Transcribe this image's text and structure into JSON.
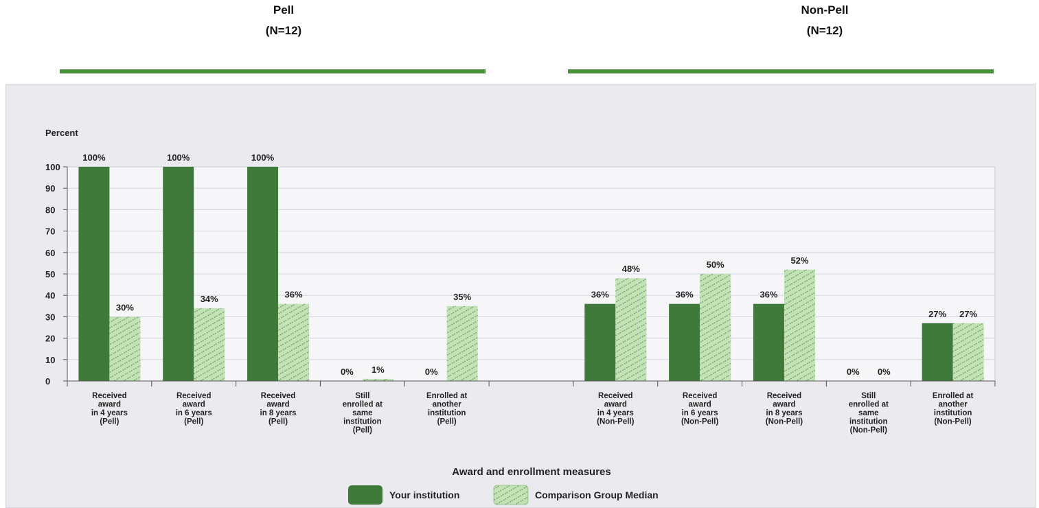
{
  "groups": [
    {
      "title": "Pell",
      "n": "(N=12)"
    },
    {
      "title": "Non-Pell",
      "n": "(N=12)"
    }
  ],
  "colors": {
    "institution": "#3f7a3a",
    "comparison_fill": "#c3e3b7",
    "comparison_stripe": "#6d9a63",
    "rule": "#4a8f3c",
    "panel": "#ebebef",
    "grid": "#d2d6e2"
  },
  "chart_data": {
    "type": "bar",
    "ylabel": "Percent",
    "xlabel": "Award and enrollment measures",
    "ylim": [
      0,
      100
    ],
    "yticks": [
      "0",
      "10",
      "20",
      "30",
      "40",
      "50",
      "60",
      "70",
      "80",
      "90",
      "100"
    ],
    "legend": [
      "Your institution",
      "Comparison Group Median"
    ],
    "categories": [
      [
        "Received",
        "award",
        "in 4 years",
        "(Pell)"
      ],
      [
        "Received",
        "award",
        "in 6 years",
        "(Pell)"
      ],
      [
        "Received",
        "award",
        "in 8 years",
        "(Pell)"
      ],
      [
        "Still",
        "enrolled at",
        "same",
        "institution",
        "(Pell)"
      ],
      [
        "Enrolled at",
        "another",
        "institution",
        "(Pell)"
      ],
      [],
      [
        "Received",
        "award",
        "in 4 years",
        "(Non-Pell)"
      ],
      [
        "Received",
        "award",
        "in 6 years",
        "(Non-Pell)"
      ],
      [
        "Received",
        "award",
        "in 8 years",
        "(Non-Pell)"
      ],
      [
        "Still",
        "enrolled at",
        "same",
        "institution",
        "(Non-Pell)"
      ],
      [
        "Enrolled at",
        "another",
        "institution",
        "(Non-Pell)"
      ]
    ],
    "series": [
      {
        "name": "Your institution",
        "values": [
          100,
          100,
          100,
          0,
          0,
          null,
          36,
          36,
          36,
          0,
          27
        ],
        "labels": [
          "100%",
          "100%",
          "100%",
          "0%",
          "0%",
          null,
          "36%",
          "36%",
          "36%",
          "0%",
          "27%"
        ]
      },
      {
        "name": "Comparison Group Median",
        "values": [
          30,
          34,
          36,
          1,
          35,
          null,
          48,
          50,
          52,
          0,
          27
        ],
        "labels": [
          "30%",
          "34%",
          "36%",
          "1%",
          "35%",
          null,
          "48%",
          "50%",
          "52%",
          "0%",
          "27%"
        ]
      }
    ]
  }
}
